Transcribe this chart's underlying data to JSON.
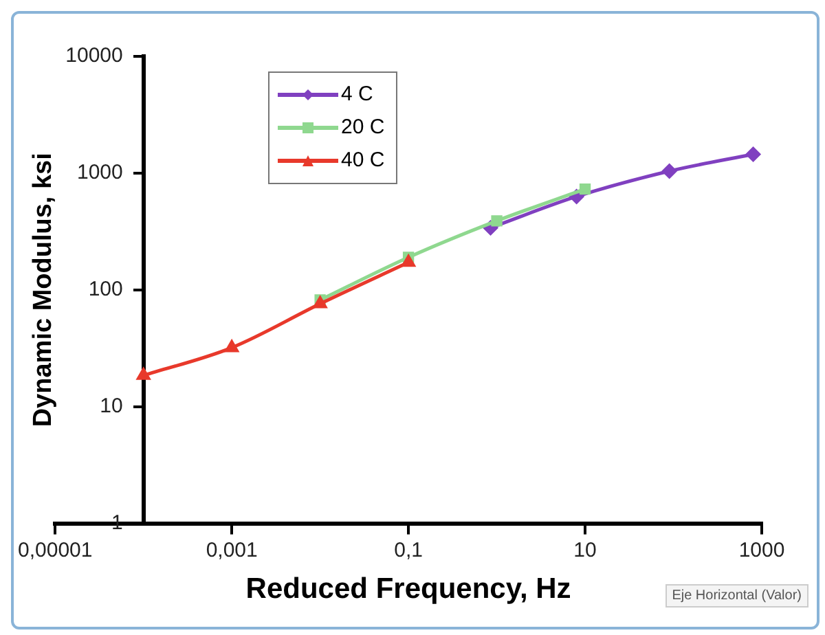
{
  "chart_data": {
    "type": "line",
    "xlabel": "Reduced Frequency, Hz",
    "ylabel": "Dynamic Modulus, ksi",
    "log": "xy",
    "xlim": [
      1e-05,
      1000
    ],
    "xticks": [
      {
        "value": 1e-05,
        "label": "0,00001"
      },
      {
        "value": 0.001,
        "label": "0,001"
      },
      {
        "value": 0.1,
        "label": "0,1"
      },
      10,
      1000
    ],
    "ylim": [
      1,
      10000
    ],
    "yticks": [
      1,
      10,
      100,
      1000,
      10000
    ],
    "grid": false,
    "legend": "top left",
    "series": [
      {
        "name": "4 C",
        "color": "#8040c0",
        "marker": "diamond",
        "x": [
          0.85,
          8,
          90,
          800
        ],
        "values": [
          340,
          630,
          1040,
          1450
        ]
      },
      {
        "name": "20 C",
        "color": "#8fd88f",
        "marker": "square",
        "x": [
          0.01,
          0.1,
          1,
          10
        ],
        "values": [
          82,
          190,
          390,
          730
        ]
      },
      {
        "name": "40 C",
        "color": "#e8392b",
        "marker": "triangle",
        "x": [
          0.0001,
          0.001,
          0.01,
          0.1
        ],
        "values": [
          18.5,
          32,
          76,
          172
        ]
      }
    ],
    "annotations": [
      "Eje Horizontal (Valor)"
    ]
  }
}
